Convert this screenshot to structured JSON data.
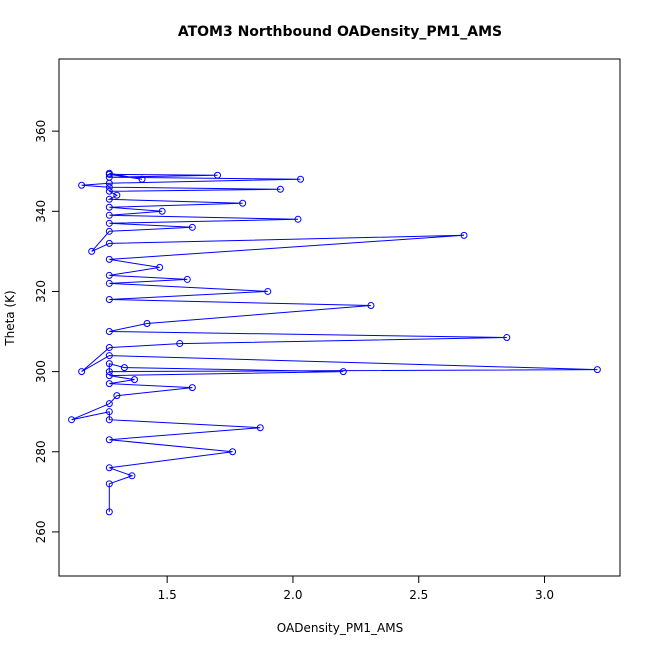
{
  "chart_data": {
    "type": "scatter",
    "title": "ATOM3 Northbound OADensity_PM1_AMS",
    "xlabel": "OADensity_PM1_AMS",
    "ylabel": "Theta (K)",
    "xlim": [
      1.07,
      3.3
    ],
    "ylim": [
      249,
      378
    ],
    "xticks": [
      1.5,
      2.0,
      2.5,
      3.0
    ],
    "xtick_labels": [
      "1.5",
      "2.0",
      "2.5",
      "3.0"
    ],
    "yticks": [
      260,
      280,
      300,
      320,
      340,
      360
    ],
    "ytick_labels": [
      "260",
      "280",
      "300",
      "320",
      "340",
      "360"
    ],
    "grid": false,
    "legend": "none",
    "series_color": "#0000ff",
    "markers": "open-circle",
    "connected": true,
    "series": [
      {
        "x": [
          1.27,
          1.27,
          1.36,
          1.27,
          1.76,
          1.27,
          1.87,
          1.27,
          1.27,
          1.12,
          1.27,
          1.3,
          1.6,
          1.27,
          1.37,
          1.27,
          2.2,
          1.33,
          1.27,
          1.27,
          3.21,
          1.27,
          1.16,
          1.27,
          1.55,
          2.85,
          1.27,
          1.42,
          2.31,
          1.27,
          1.9,
          1.27,
          1.58,
          1.27,
          1.47,
          1.27,
          2.68,
          1.27,
          1.2,
          1.27,
          1.6,
          1.27,
          2.02,
          1.27,
          1.48,
          1.27,
          1.8,
          1.27,
          1.3,
          1.27,
          1.95,
          1.27,
          1.16,
          1.27,
          2.03,
          1.27,
          1.7,
          1.27,
          1.4,
          1.27
        ],
        "y": [
          265,
          272,
          274,
          276,
          280,
          283,
          286,
          288,
          290,
          288,
          292,
          294,
          296,
          297,
          298,
          299,
          300,
          301,
          302,
          300,
          300.5,
          304,
          300,
          306,
          307,
          308.5,
          310,
          312,
          316.5,
          318,
          320,
          322,
          323,
          324,
          326,
          328,
          334,
          332,
          330,
          335,
          336,
          337,
          338,
          339,
          340,
          341,
          342,
          343,
          344,
          345,
          345.5,
          346,
          346.5,
          347,
          348,
          348.5,
          349,
          349.2,
          348,
          349.5
        ]
      }
    ]
  }
}
